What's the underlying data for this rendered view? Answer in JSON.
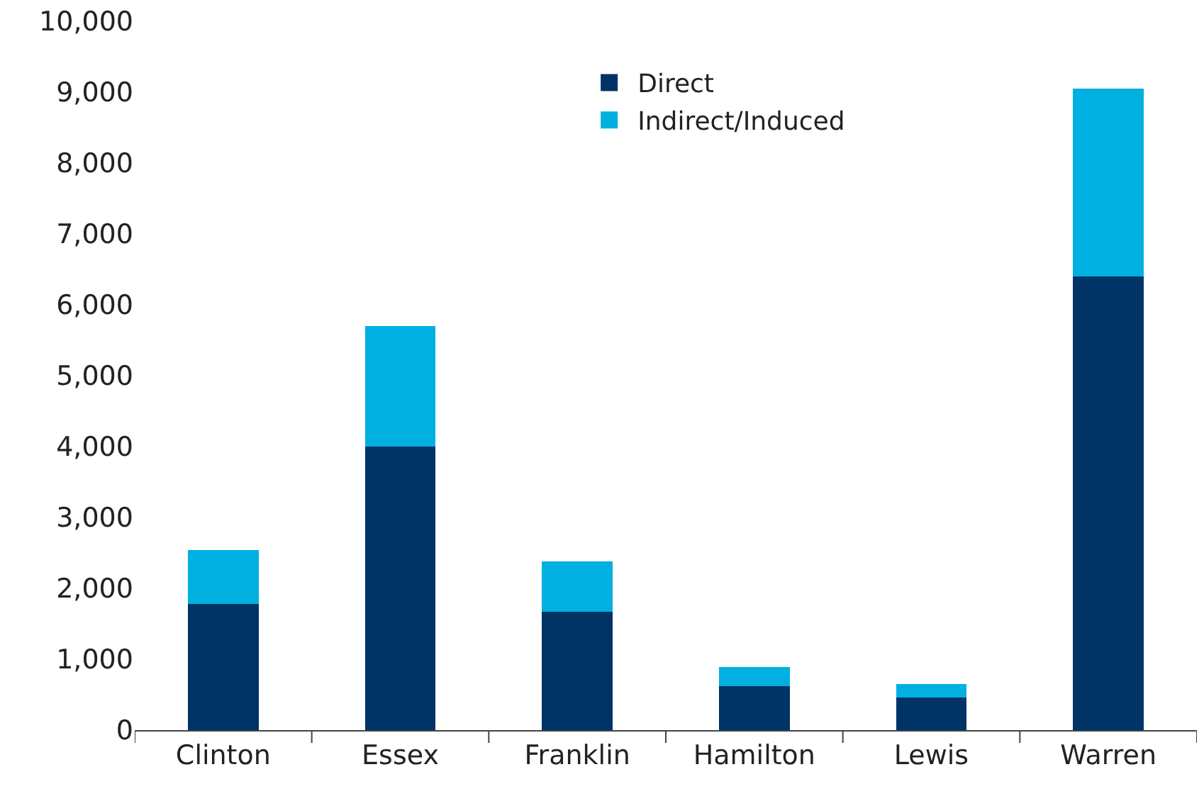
{
  "chart_data": {
    "type": "bar",
    "stacked": true,
    "categories": [
      "Clinton",
      "Essex",
      "Franklin",
      "Hamilton",
      "Lewis",
      "Warren"
    ],
    "series": [
      {
        "name": "Direct",
        "color": "#003366",
        "values": [
          1780,
          4000,
          1670,
          625,
          460,
          6400
        ]
      },
      {
        "name": "Indirect/Induced",
        "color": "#00b0e0",
        "values": [
          760,
          1700,
          710,
          265,
          190,
          2650
        ]
      }
    ],
    "ylim": [
      0,
      10000
    ],
    "yticks": [
      {
        "value": 0,
        "label": "0"
      },
      {
        "value": 1000,
        "label": "1,000"
      },
      {
        "value": 2000,
        "label": "2,000"
      },
      {
        "value": 3000,
        "label": "3,000"
      },
      {
        "value": 4000,
        "label": "4,000"
      },
      {
        "value": 5000,
        "label": "5,000"
      },
      {
        "value": 6000,
        "label": "6,000"
      },
      {
        "value": 7000,
        "label": "7,000"
      },
      {
        "value": 8000,
        "label": "8,000"
      },
      {
        "value": 9000,
        "label": "9,000"
      },
      {
        "value": 10000,
        "label": "10,000"
      }
    ],
    "grid": false,
    "legend": "top"
  }
}
